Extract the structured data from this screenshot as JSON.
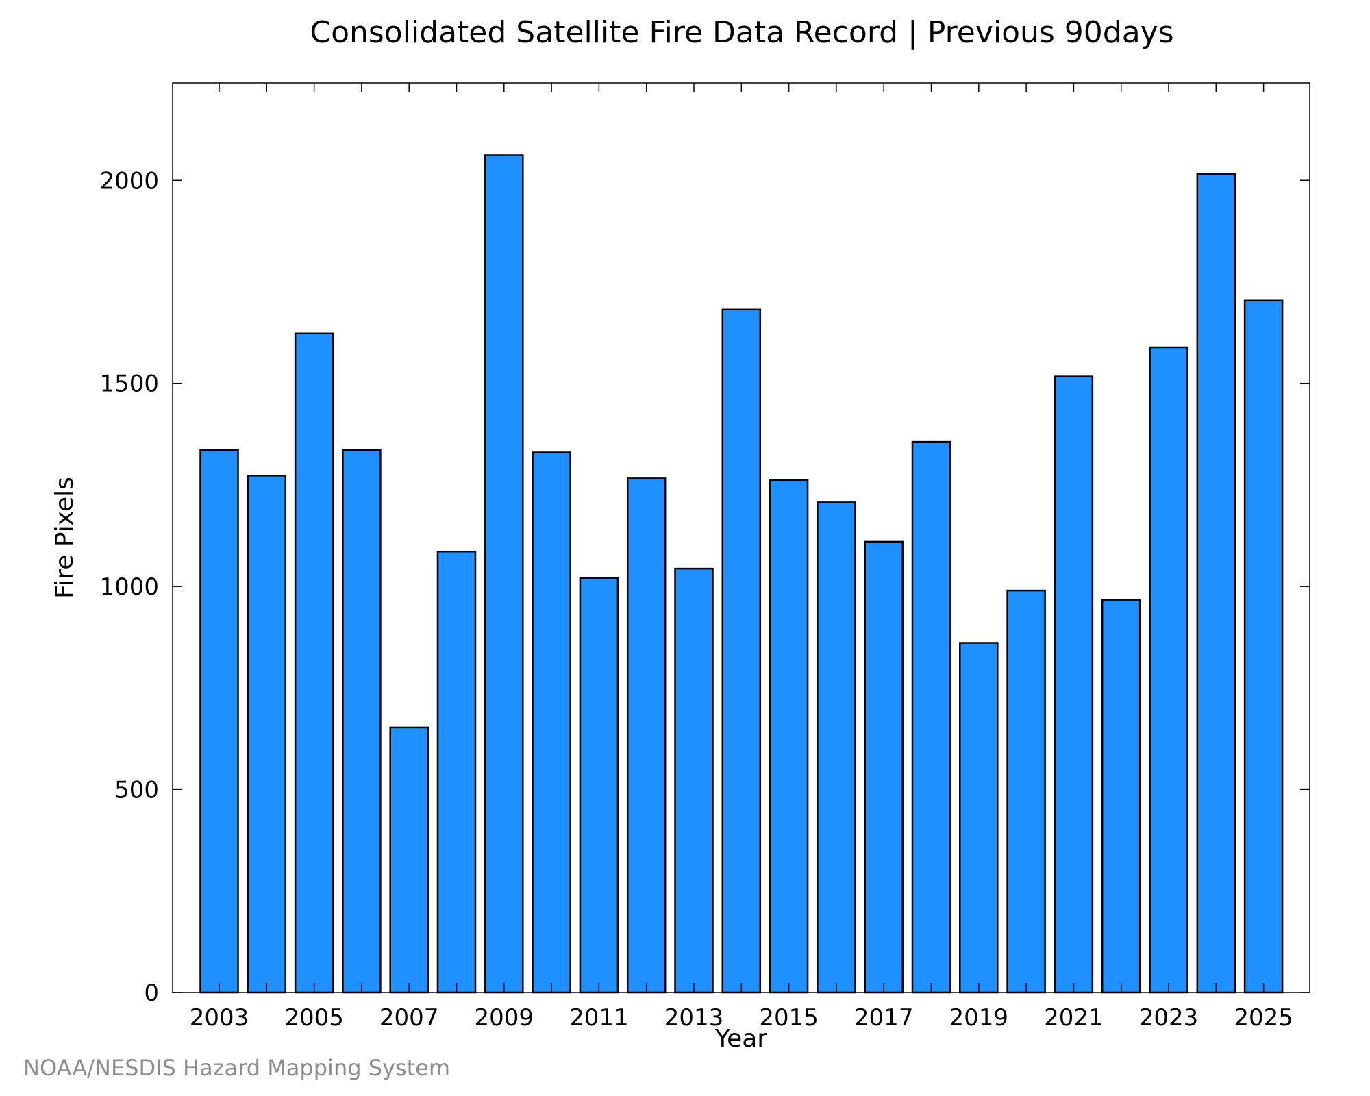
{
  "chart_data": {
    "type": "bar",
    "title": "Consolidated Satellite Fire Data Record | Previous 90days",
    "xlabel": "Year",
    "ylabel": "Fire Pixels",
    "categories": [
      "2003",
      "2004",
      "2005",
      "2006",
      "2007",
      "2008",
      "2009",
      "2010",
      "2011",
      "2012",
      "2013",
      "2014",
      "2015",
      "2016",
      "2017",
      "2018",
      "2019",
      "2020",
      "2021",
      "2022",
      "2023",
      "2024",
      "2025"
    ],
    "values": [
      1336,
      1273,
      1623,
      1336,
      653,
      1086,
      2062,
      1330,
      1021,
      1266,
      1044,
      1682,
      1262,
      1207,
      1110,
      1356,
      861,
      990,
      1517,
      967,
      1589,
      2016,
      1704
    ],
    "ylim": [
      0,
      2240
    ],
    "yticks": [
      0,
      500,
      1000,
      1500,
      2000
    ],
    "xtick_labels": [
      "2003",
      "2005",
      "2007",
      "2009",
      "2011",
      "2013",
      "2015",
      "2017",
      "2019",
      "2021",
      "2023",
      "2025"
    ],
    "bar_color": "#1e90ff",
    "edge_color": "#000000",
    "grid": false,
    "legend": "none"
  },
  "footer": {
    "credit": "NOAA/NESDIS Hazard Mapping System"
  }
}
